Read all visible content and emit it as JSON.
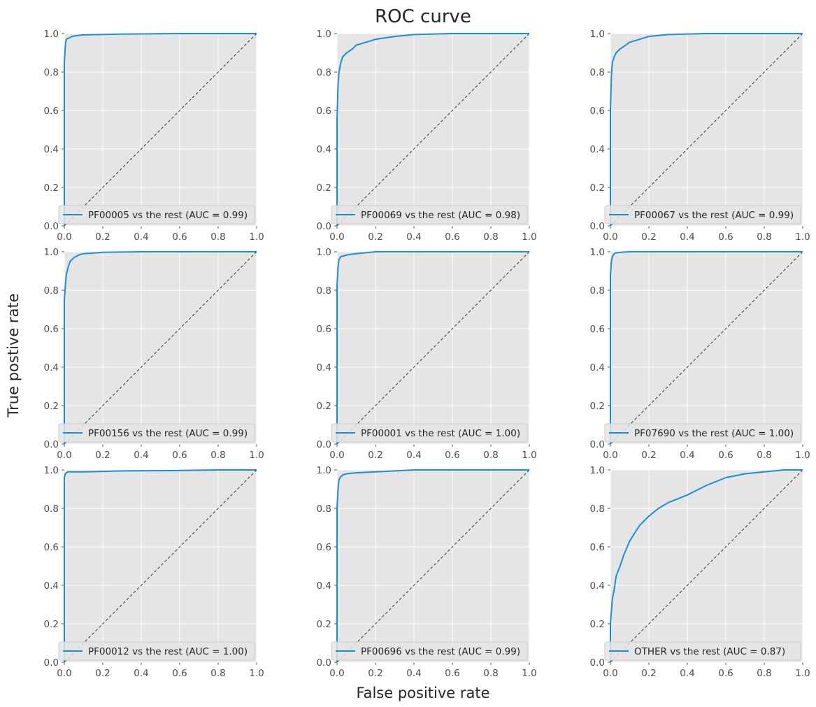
{
  "figure": {
    "title": "ROC curve",
    "xlabel": "False positive rate",
    "ylabel": "True postive rate",
    "colors": {
      "curve": "#1a8fd9",
      "diagonal": "#333333",
      "panel_bg": "#e5e5e5",
      "grid": "#ffffff"
    }
  },
  "chart_data": [
    {
      "type": "line",
      "legend": "PF00005 vs the rest (AUC = 0.99)",
      "legend_position": "lower right",
      "xlim": [
        0,
        1
      ],
      "ylim": [
        0,
        1
      ],
      "xticks": [
        "0.0",
        "0.2",
        "0.4",
        "0.6",
        "0.8",
        "1.0"
      ],
      "yticks": [
        "0.0",
        "0.2",
        "0.4",
        "0.6",
        "0.8",
        "1.0"
      ],
      "grid": true,
      "series": [
        {
          "x": [
            0,
            0,
            0.003,
            0.006,
            0.01,
            0.02,
            0.04,
            0.07,
            0.1,
            0.3,
            0.6,
            1.0
          ],
          "y": [
            0,
            0.85,
            0.9,
            0.95,
            0.97,
            0.975,
            0.985,
            0.99,
            0.993,
            0.997,
            1.0,
            1.0
          ]
        }
      ]
    },
    {
      "type": "line",
      "legend": "PF00069 vs the rest (AUC = 0.98)",
      "legend_position": "lower right",
      "xlim": [
        0,
        1
      ],
      "ylim": [
        0,
        1
      ],
      "xticks": [
        "0.0",
        "0.2",
        "0.4",
        "0.6",
        "0.8",
        "1.0"
      ],
      "yticks": [
        "0.0",
        "0.2",
        "0.4",
        "0.6",
        "0.8",
        "1.0"
      ],
      "grid": true,
      "series": [
        {
          "x": [
            0,
            0,
            0.005,
            0.01,
            0.02,
            0.03,
            0.05,
            0.08,
            0.1,
            0.15,
            0.2,
            0.3,
            0.4,
            0.6,
            1.0
          ],
          "y": [
            0,
            0.55,
            0.73,
            0.8,
            0.85,
            0.88,
            0.9,
            0.92,
            0.94,
            0.955,
            0.97,
            0.985,
            0.995,
            1.0,
            1.0
          ]
        }
      ]
    },
    {
      "type": "line",
      "legend": "PF00067 vs the rest (AUC = 0.99)",
      "legend_position": "lower right",
      "xlim": [
        0,
        1
      ],
      "ylim": [
        0,
        1
      ],
      "xticks": [
        "0.0",
        "0.2",
        "0.4",
        "0.6",
        "0.8",
        "1.0"
      ],
      "yticks": [
        "0.0",
        "0.2",
        "0.4",
        "0.6",
        "0.8",
        "1.0"
      ],
      "grid": true,
      "series": [
        {
          "x": [
            0,
            0,
            0.005,
            0.01,
            0.02,
            0.03,
            0.05,
            0.08,
            0.1,
            0.15,
            0.2,
            0.3,
            0.5,
            1.0
          ],
          "y": [
            0,
            0.6,
            0.78,
            0.85,
            0.88,
            0.9,
            0.92,
            0.94,
            0.955,
            0.97,
            0.985,
            0.995,
            1.0,
            1.0
          ]
        }
      ]
    },
    {
      "type": "line",
      "legend": "PF00156 vs the rest (AUC = 0.99)",
      "legend_position": "lower right",
      "xlim": [
        0,
        1
      ],
      "ylim": [
        0,
        1
      ],
      "xticks": [
        "0.0",
        "0.2",
        "0.4",
        "0.6",
        "0.8",
        "1.0"
      ],
      "yticks": [
        "0.0",
        "0.2",
        "0.4",
        "0.6",
        "0.8",
        "1.0"
      ],
      "grid": true,
      "series": [
        {
          "x": [
            0,
            0,
            0.005,
            0.01,
            0.02,
            0.03,
            0.05,
            0.08,
            0.1,
            0.15,
            0.2,
            0.4,
            1.0
          ],
          "y": [
            0,
            0.75,
            0.82,
            0.88,
            0.92,
            0.95,
            0.97,
            0.985,
            0.99,
            0.993,
            0.997,
            1.0,
            1.0
          ]
        }
      ]
    },
    {
      "type": "line",
      "legend": "PF00001 vs the rest (AUC = 1.00)",
      "legend_position": "lower right",
      "xlim": [
        0,
        1
      ],
      "ylim": [
        0,
        1
      ],
      "xticks": [
        "0.0",
        "0.2",
        "0.4",
        "0.6",
        "0.8",
        "1.0"
      ],
      "yticks": [
        "0.0",
        "0.2",
        "0.4",
        "0.6",
        "0.8",
        "1.0"
      ],
      "grid": true,
      "series": [
        {
          "x": [
            0,
            0,
            0.005,
            0.01,
            0.02,
            0.04,
            0.06,
            0.1,
            0.2,
            1.0
          ],
          "y": [
            0,
            0.82,
            0.92,
            0.96,
            0.975,
            0.98,
            0.985,
            0.99,
            1.0,
            1.0
          ]
        }
      ]
    },
    {
      "type": "line",
      "legend": "PF07690 vs the rest (AUC = 1.00)",
      "legend_position": "lower right",
      "xlim": [
        0,
        1
      ],
      "ylim": [
        0,
        1
      ],
      "xticks": [
        "0.0",
        "0.2",
        "0.4",
        "0.6",
        "0.8",
        "1.0"
      ],
      "yticks": [
        "0.0",
        "0.2",
        "0.4",
        "0.6",
        "0.8",
        "1.0"
      ],
      "grid": true,
      "series": [
        {
          "x": [
            0,
            0,
            0.005,
            0.01,
            0.02,
            0.03,
            0.06,
            0.1,
            0.2,
            1.0
          ],
          "y": [
            0,
            0.88,
            0.95,
            0.975,
            0.99,
            0.995,
            0.998,
            1.0,
            1.0,
            1.0
          ]
        }
      ]
    },
    {
      "type": "line",
      "legend": "PF00012 vs the rest (AUC = 1.00)",
      "legend_position": "lower right",
      "xlim": [
        0,
        1
      ],
      "ylim": [
        0,
        1
      ],
      "xticks": [
        "0.0",
        "0.2",
        "0.4",
        "0.6",
        "0.8",
        "1.0"
      ],
      "yticks": [
        "0.0",
        "0.2",
        "0.4",
        "0.6",
        "0.8",
        "1.0"
      ],
      "grid": true,
      "series": [
        {
          "x": [
            0,
            0,
            0.005,
            0.01,
            0.02,
            0.05,
            0.1,
            0.3,
            0.6,
            0.8,
            1.0
          ],
          "y": [
            0,
            0.96,
            0.98,
            0.985,
            0.99,
            0.99,
            0.99,
            0.995,
            0.997,
            1.0,
            1.0
          ]
        }
      ]
    },
    {
      "type": "line",
      "legend": "PF00696 vs the rest (AUC = 0.99)",
      "legend_position": "lower right",
      "xlim": [
        0,
        1
      ],
      "ylim": [
        0,
        1
      ],
      "xticks": [
        "0.0",
        "0.2",
        "0.4",
        "0.6",
        "0.8",
        "1.0"
      ],
      "yticks": [
        "0.0",
        "0.2",
        "0.4",
        "0.6",
        "0.8",
        "1.0"
      ],
      "grid": true,
      "series": [
        {
          "x": [
            0,
            0,
            0.005,
            0.01,
            0.02,
            0.03,
            0.05,
            0.1,
            0.2,
            0.4,
            1.0
          ],
          "y": [
            0,
            0.8,
            0.9,
            0.95,
            0.965,
            0.975,
            0.98,
            0.985,
            0.99,
            1.0,
            1.0
          ]
        }
      ]
    },
    {
      "type": "line",
      "legend": "OTHER vs the rest (AUC = 0.87)",
      "legend_position": "lower right",
      "xlim": [
        0,
        1
      ],
      "ylim": [
        0,
        1
      ],
      "xticks": [
        "0.0",
        "0.2",
        "0.4",
        "0.6",
        "0.8",
        "1.0"
      ],
      "yticks": [
        "0.0",
        "0.2",
        "0.4",
        "0.6",
        "0.8",
        "1.0"
      ],
      "grid": true,
      "series": [
        {
          "x": [
            0,
            0,
            0.01,
            0.02,
            0.03,
            0.05,
            0.07,
            0.1,
            0.15,
            0.2,
            0.25,
            0.3,
            0.4,
            0.5,
            0.6,
            0.7,
            0.8,
            0.9,
            1.0
          ],
          "y": [
            0,
            0.2,
            0.33,
            0.38,
            0.45,
            0.5,
            0.56,
            0.63,
            0.71,
            0.76,
            0.8,
            0.83,
            0.87,
            0.92,
            0.96,
            0.98,
            0.99,
            1.0,
            1.0
          ]
        }
      ]
    }
  ]
}
